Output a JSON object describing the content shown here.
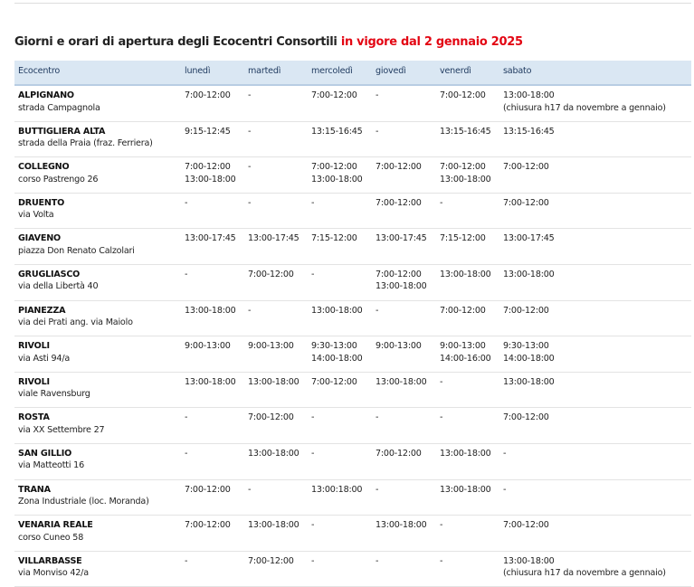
{
  "title": {
    "text": "Giorni e orari di apertura degli Ecocentri Consortili",
    "highlight": "in vigore dal 2 gennaio 2025"
  },
  "table": {
    "headers": [
      "Ecocentro",
      "lunedì",
      "martedì",
      "mercoledì",
      "giovedì",
      "venerdì",
      "sabato"
    ],
    "rows": [
      {
        "name": "ALPIGNANO",
        "address": "strada Campagnola",
        "days": [
          [
            "7:00-12:00"
          ],
          [
            "-"
          ],
          [
            "7:00-12:00"
          ],
          [
            "-"
          ],
          [
            "7:00-12:00"
          ],
          [
            "13:00-18:00",
            "(chiusura h17 da novembre a gennaio)"
          ]
        ]
      },
      {
        "name": "BUTTIGLIERA ALTA",
        "address": "strada della Praia (fraz. Ferriera)",
        "days": [
          [
            "9:15-12:45"
          ],
          [
            "-"
          ],
          [
            "13:15-16:45"
          ],
          [
            "-"
          ],
          [
            "13:15-16:45"
          ],
          [
            "13:15-16:45"
          ]
        ]
      },
      {
        "name": "COLLEGNO",
        "address": "corso Pastrengo 26",
        "days": [
          [
            "7:00-12:00",
            "13:00-18:00"
          ],
          [
            "-"
          ],
          [
            "7:00-12:00",
            "13:00-18:00"
          ],
          [
            "7:00-12:00"
          ],
          [
            "7:00-12:00",
            "13:00-18:00"
          ],
          [
            "7:00-12:00"
          ]
        ]
      },
      {
        "name": "DRUENTO",
        "address": "via Volta",
        "days": [
          [
            "-"
          ],
          [
            "-"
          ],
          [
            "-"
          ],
          [
            "7:00-12:00"
          ],
          [
            "-"
          ],
          [
            "7:00-12:00"
          ]
        ]
      },
      {
        "name": "GIAVENO",
        "address": "piazza Don Renato Calzolari",
        "days": [
          [
            "13:00-17:45"
          ],
          [
            "13:00-17:45"
          ],
          [
            "7:15-12:00"
          ],
          [
            "13:00-17:45"
          ],
          [
            "7:15-12:00"
          ],
          [
            "13:00-17:45"
          ]
        ]
      },
      {
        "name": "GRUGLIASCO",
        "address": "via della Libertà 40",
        "days": [
          [
            "-"
          ],
          [
            "7:00-12:00"
          ],
          [
            "-"
          ],
          [
            "7:00-12:00",
            "13:00-18:00"
          ],
          [
            "13:00-18:00"
          ],
          [
            "13:00-18:00"
          ]
        ]
      },
      {
        "name": "PIANEZZA",
        "address": "via dei Prati ang. via Maiolo",
        "days": [
          [
            "13:00-18:00"
          ],
          [
            "-"
          ],
          [
            "13:00-18:00"
          ],
          [
            "-"
          ],
          [
            "7:00-12:00"
          ],
          [
            "7:00-12:00"
          ]
        ]
      },
      {
        "name": "RIVOLI",
        "address": "via Asti 94/a",
        "days": [
          [
            "9:00-13:00"
          ],
          [
            "9:00-13:00"
          ],
          [
            "9:30-13:00",
            "14:00-18:00"
          ],
          [
            "9:00-13:00"
          ],
          [
            "9:00-13:00",
            "14:00-16:00"
          ],
          [
            "9:30-13:00",
            "14:00-18:00"
          ]
        ]
      },
      {
        "name": "RIVOLI",
        "address": "viale Ravensburg",
        "days": [
          [
            "13:00-18:00"
          ],
          [
            "13:00-18:00"
          ],
          [
            "7:00-12:00"
          ],
          [
            "13:00-18:00"
          ],
          [
            "-"
          ],
          [
            "13:00-18:00"
          ]
        ]
      },
      {
        "name": "ROSTA",
        "address": "via XX Settembre 27",
        "days": [
          [
            "-"
          ],
          [
            "7:00-12:00"
          ],
          [
            "-"
          ],
          [
            "-"
          ],
          [
            "-"
          ],
          [
            "7:00-12:00"
          ]
        ]
      },
      {
        "name": "SAN GILLIO",
        "address": "via Matteotti 16",
        "days": [
          [
            "-"
          ],
          [
            "13:00-18:00"
          ],
          [
            "-"
          ],
          [
            "7:00-12:00"
          ],
          [
            "13:00-18:00"
          ],
          [
            "-"
          ]
        ]
      },
      {
        "name": "TRANA",
        "address": "Zona Industriale (loc. Moranda)",
        "days": [
          [
            "7:00-12:00"
          ],
          [
            "-"
          ],
          [
            "13:00:18:00"
          ],
          [
            "-"
          ],
          [
            "13:00-18:00"
          ],
          [
            "-"
          ]
        ]
      },
      {
        "name": "VENARIA REALE",
        "address": "corso Cuneo 58",
        "days": [
          [
            "7:00-12:00"
          ],
          [
            "13:00-18:00"
          ],
          [
            "-"
          ],
          [
            "13:00-18:00"
          ],
          [
            "-"
          ],
          [
            "7:00-12:00"
          ]
        ]
      },
      {
        "name": "VILLARBASSE",
        "address": "via Monviso 42/a",
        "days": [
          [
            "-"
          ],
          [
            "7:00-12:00"
          ],
          [
            "-"
          ],
          [
            "-"
          ],
          [
            "-"
          ],
          [
            "13:00-18:00",
            "(chiusura h17 da novembre a gennaio)"
          ]
        ]
      }
    ]
  }
}
